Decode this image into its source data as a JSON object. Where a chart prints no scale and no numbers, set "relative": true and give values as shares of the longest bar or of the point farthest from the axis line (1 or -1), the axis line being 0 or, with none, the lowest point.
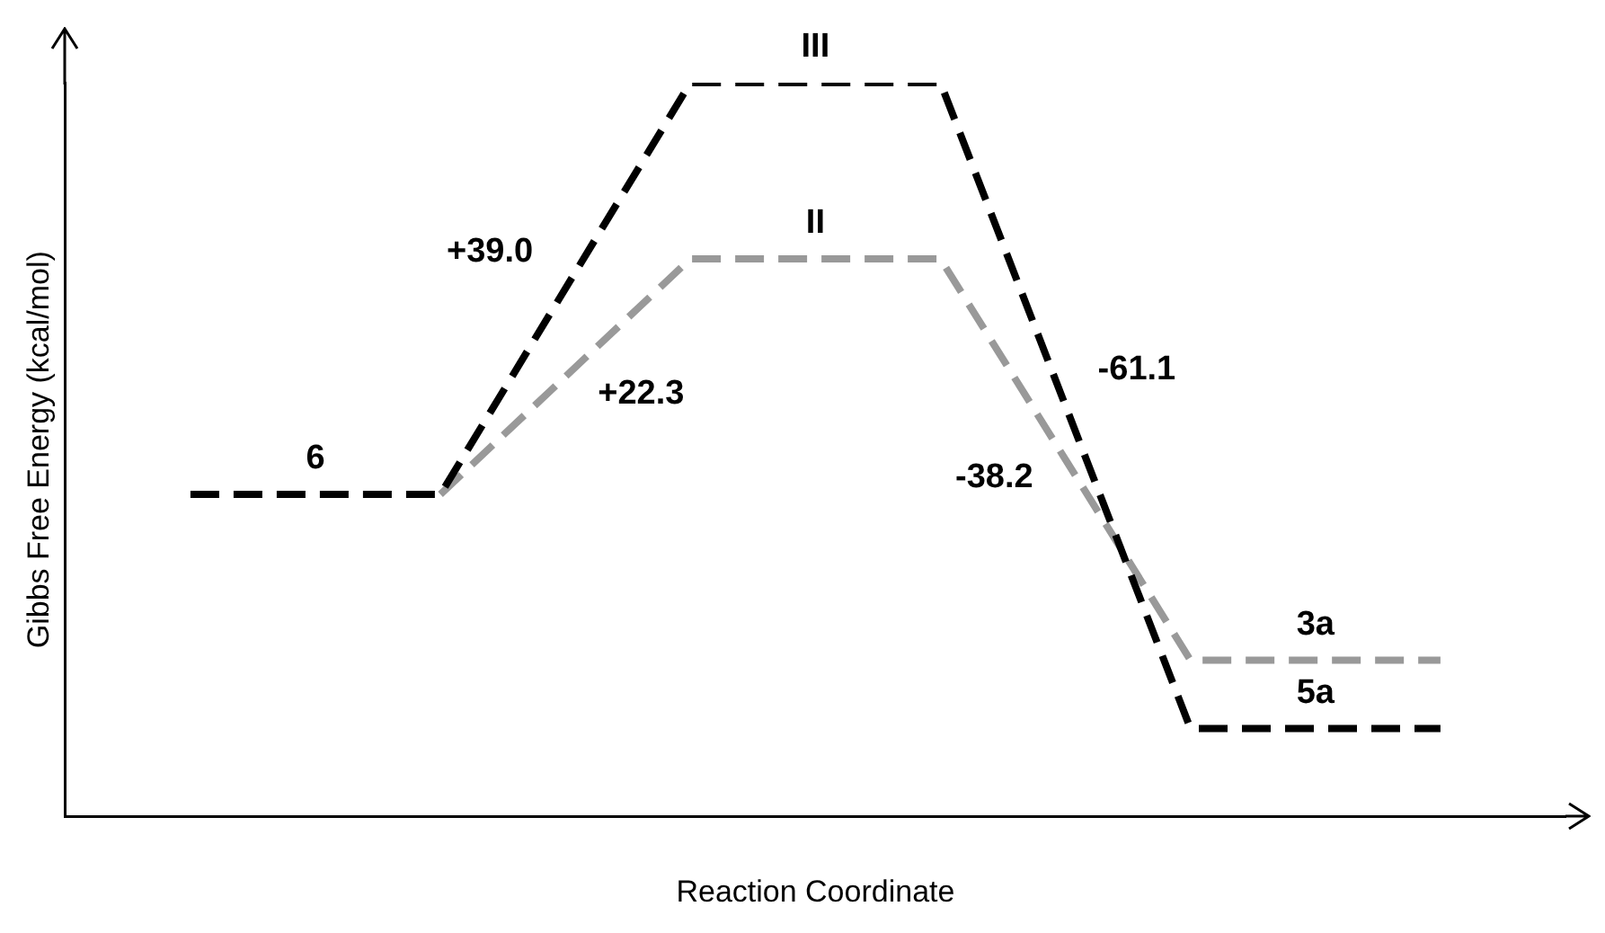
{
  "chart_data": {
    "type": "line",
    "relative": true,
    "xlabel": "Reaction Coordinate",
    "ylabel": "Gibbs Free Energy (kcal/mol)",
    "categories": [
      null,
      null,
      null,
      null,
      null,
      null
    ],
    "series": [
      {
        "color": "#000000",
        "values": [
          0.439,
          0.439,
          1,
          1,
          0.12,
          0.12
        ]
      },
      {
        "color": "#999999",
        "values": [
          null,
          0.439,
          0.76,
          0.76,
          0.213,
          0.213
        ]
      }
    ],
    "annotations": [
      "6",
      "+39.0",
      "III",
      "-61.1",
      "5a",
      "+22.3",
      "II",
      "-38.2",
      "3a"
    ],
    "marker": "none",
    "line_style": "dashed",
    "grid": false,
    "legend": false
  }
}
